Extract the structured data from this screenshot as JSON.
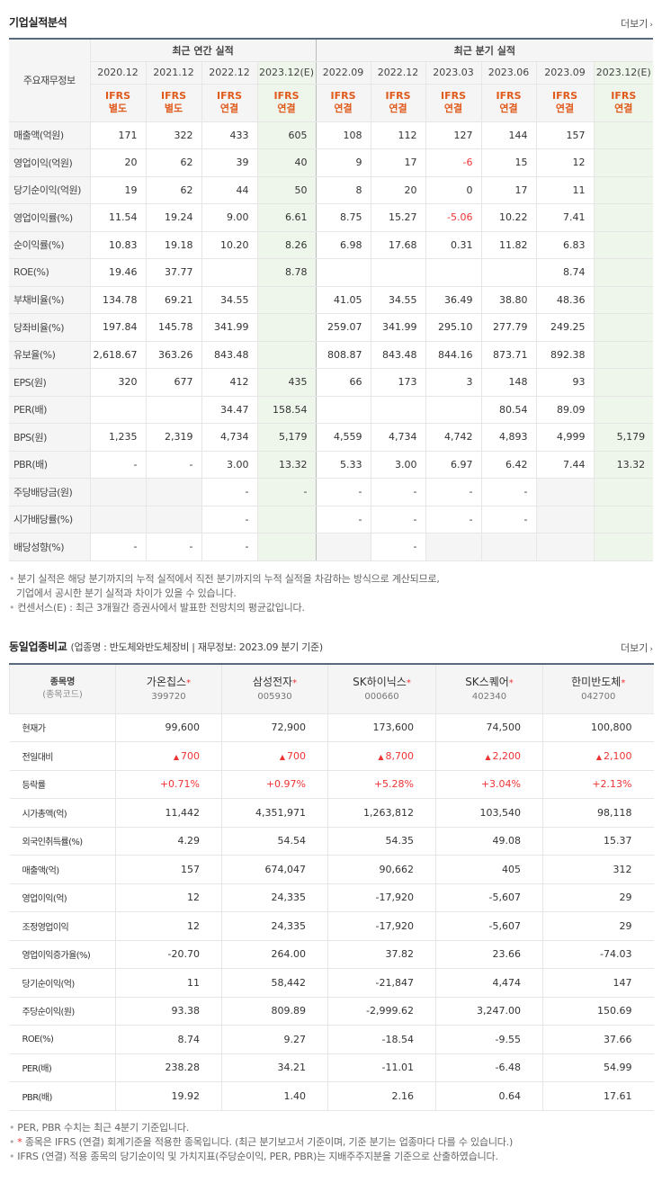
{
  "section1": {
    "title": "기업실적분석",
    "more": "더보기",
    "row_header_label": "주요재무정보",
    "group_annual": "최근 연간 실적",
    "group_quarter": "최근 분기 실적",
    "periods": [
      "2020.12",
      "2021.12",
      "2022.12",
      "2023.12(E)",
      "2022.09",
      "2022.12",
      "2023.03",
      "2023.06",
      "2023.09",
      "2023.12(E)"
    ],
    "standards": [
      [
        "IFRS",
        "별도"
      ],
      [
        "IFRS",
        "별도"
      ],
      [
        "IFRS",
        "연결"
      ],
      [
        "IFRS",
        "연결"
      ],
      [
        "IFRS",
        "연결"
      ],
      [
        "IFRS",
        "연결"
      ],
      [
        "IFRS",
        "연결"
      ],
      [
        "IFRS",
        "연결"
      ],
      [
        "IFRS",
        "연결"
      ],
      [
        "IFRS",
        "연결"
      ]
    ],
    "rows": [
      {
        "label": "매출액(억원)",
        "values": [
          "171",
          "322",
          "433",
          "605",
          "108",
          "112",
          "127",
          "144",
          "157",
          ""
        ]
      },
      {
        "label": "영업이익(억원)",
        "values": [
          "20",
          "62",
          "39",
          "40",
          "9",
          "17",
          "-6",
          "15",
          "12",
          ""
        ]
      },
      {
        "label": "당기순이익(억원)",
        "values": [
          "19",
          "62",
          "44",
          "50",
          "8",
          "20",
          "0",
          "17",
          "11",
          ""
        ]
      },
      {
        "label": "영업이익률(%)",
        "values": [
          "11.54",
          "19.24",
          "9.00",
          "6.61",
          "8.75",
          "15.27",
          "-5.06",
          "10.22",
          "7.41",
          ""
        ]
      },
      {
        "label": "순이익률(%)",
        "values": [
          "10.83",
          "19.18",
          "10.20",
          "8.26",
          "6.98",
          "17.68",
          "0.31",
          "11.82",
          "6.83",
          ""
        ]
      },
      {
        "label": "ROE(%)",
        "values": [
          "19.46",
          "37.77",
          "",
          "8.78",
          "",
          "",
          "",
          "",
          "8.74",
          ""
        ]
      },
      {
        "label": "부채비율(%)",
        "values": [
          "134.78",
          "69.21",
          "34.55",
          "",
          "41.05",
          "34.55",
          "36.49",
          "38.80",
          "48.36",
          ""
        ]
      },
      {
        "label": "당좌비율(%)",
        "values": [
          "197.84",
          "145.78",
          "341.99",
          "",
          "259.07",
          "341.99",
          "295.10",
          "277.79",
          "249.25",
          ""
        ]
      },
      {
        "label": "유보율(%)",
        "values": [
          "2,618.67",
          "363.26",
          "843.48",
          "",
          "808.87",
          "843.48",
          "844.16",
          "873.71",
          "892.38",
          ""
        ]
      },
      {
        "label": "EPS(원)",
        "values": [
          "320",
          "677",
          "412",
          "435",
          "66",
          "173",
          "3",
          "148",
          "93",
          ""
        ]
      },
      {
        "label": "PER(배)",
        "values": [
          "",
          "",
          "34.47",
          "158.54",
          "",
          "",
          "",
          "80.54",
          "89.09",
          ""
        ]
      },
      {
        "label": "BPS(원)",
        "values": [
          "1,235",
          "2,319",
          "4,734",
          "5,179",
          "4,559",
          "4,734",
          "4,742",
          "4,893",
          "4,999",
          "5,179"
        ]
      },
      {
        "label": "PBR(배)",
        "values": [
          "-",
          "-",
          "3.00",
          "13.32",
          "5.33",
          "3.00",
          "6.97",
          "6.42",
          "7.44",
          "13.32"
        ]
      },
      {
        "label": "주당배당금(원)",
        "values": [
          "",
          "",
          "-",
          "-",
          "-",
          "-",
          "-",
          "-",
          "",
          ""
        ]
      },
      {
        "label": "시가배당률(%)",
        "values": [
          "",
          "",
          "-",
          "",
          "-",
          "-",
          "-",
          "-",
          "",
          ""
        ]
      },
      {
        "label": "배당성향(%)",
        "values": [
          "-",
          "-",
          "-",
          "",
          "",
          "-",
          "",
          "",
          "",
          ""
        ]
      }
    ],
    "notes": [
      "분기 실적은 해당 분기까지의 누적 실적에서 직전 분기까지의 누적 실적을 차감하는 방식으로 계산되므로,",
      "기업에서 공시한 분기 실적과 차이가 있을 수 있습니다.",
      "컨센서스(E) : 최근 3개월간 증권사에서 발표한 전망치의 평균값입니다."
    ]
  },
  "section2": {
    "title": "동일업종비교",
    "subtitle": "(업종명 : 반도체와반도체장비 | 재무정보: 2023.09 분기 기준)",
    "more": "더보기",
    "head_label": "종목명",
    "head_sub": "(종목코드)",
    "companies": [
      {
        "name": "가온칩스",
        "code": "399720"
      },
      {
        "name": "삼성전자",
        "code": "005930"
      },
      {
        "name": "SK하이닉스",
        "code": "000660"
      },
      {
        "name": "SK스퀘어",
        "code": "402340"
      },
      {
        "name": "한미반도체",
        "code": "042700"
      }
    ],
    "asterisk": "*",
    "rows": [
      {
        "label": "현재가",
        "values": [
          "99,600",
          "72,900",
          "173,600",
          "74,500",
          "100,800"
        ]
      },
      {
        "label": "전일대비",
        "values": [
          "700",
          "700",
          "8,700",
          "2,200",
          "2,100"
        ],
        "arrow": "▲"
      },
      {
        "label": "등락률",
        "values": [
          "+0.71%",
          "+0.97%",
          "+5.28%",
          "+3.04%",
          "+2.13%"
        ]
      },
      {
        "label": "시가총액(억)",
        "values": [
          "11,442",
          "4,351,971",
          "1,263,812",
          "103,540",
          "98,118"
        ]
      },
      {
        "label": "외국인취득률(%)",
        "values": [
          "4.29",
          "54.54",
          "54.35",
          "49.08",
          "15.37"
        ]
      },
      {
        "label": "매출액(억)",
        "values": [
          "157",
          "674,047",
          "90,662",
          "405",
          "312"
        ]
      },
      {
        "label": "영업이익(억)",
        "values": [
          "12",
          "24,335",
          "-17,920",
          "-5,607",
          "29"
        ]
      },
      {
        "label": "조정영업이익",
        "values": [
          "12",
          "24,335",
          "-17,920",
          "-5,607",
          "29"
        ]
      },
      {
        "label": "영업이익증가율(%)",
        "values": [
          "-20.70",
          "264.00",
          "37.82",
          "23.66",
          "-74.03"
        ]
      },
      {
        "label": "당기순이익(억)",
        "values": [
          "11",
          "58,442",
          "-21,847",
          "4,474",
          "147"
        ]
      },
      {
        "label": "주당순이익(원)",
        "values": [
          "93.38",
          "809.89",
          "-2,999.62",
          "3,247.00",
          "150.69"
        ]
      },
      {
        "label": "ROE(%)",
        "values": [
          "8.74",
          "9.27",
          "-18.54",
          "-9.55",
          "37.66"
        ]
      },
      {
        "label": "PER(배)",
        "values": [
          "238.28",
          "34.21",
          "-11.01",
          "-6.48",
          "54.99"
        ]
      },
      {
        "label": "PBR(배)",
        "values": [
          "19.92",
          "1.40",
          "2.16",
          "0.64",
          "17.61"
        ]
      }
    ],
    "notes": [
      "PER, PBR 수치는 최근 4분기 기준입니다.",
      "종목은 IFRS (연결) 회계기준을 적용한 종목입니다. (최근 분기보고서 기준이며, 기준 분기는 업종마다 다를 수 있습니다.)",
      "IFRS (연결) 적용 종목의 당기순이익 및 가치지표(주당순이익, PER, PBR)는 지배주주지분을 기준으로 산출하였습니다."
    ]
  }
}
